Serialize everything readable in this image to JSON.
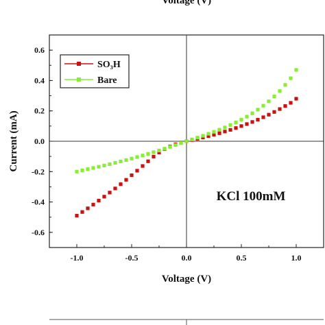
{
  "top_cropped_label": "Voltage (V)",
  "chart_data": {
    "type": "line",
    "xlabel": "Voltage (V)",
    "ylabel": "Current (mA)",
    "xlim": [
      -1.25,
      1.25
    ],
    "ylim": [
      -0.7,
      0.7
    ],
    "x_ticks": [
      -1.0,
      -0.5,
      0.0,
      0.5,
      1.0
    ],
    "x_tick_labels": [
      "-1.0",
      "-0.5",
      "0.0",
      "0.5",
      "1.0"
    ],
    "y_ticks": [
      -0.6,
      -0.4,
      -0.2,
      0.0,
      0.2,
      0.4,
      0.6
    ],
    "y_tick_labels": [
      "-0.6",
      "-0.4",
      "-0.2",
      "0.0",
      "0.2",
      "0.4",
      "0.6"
    ],
    "annotation": "KCl 100mM",
    "legend_position": "top-left",
    "x": [
      -1.0,
      -0.95,
      -0.9,
      -0.85,
      -0.8,
      -0.75,
      -0.7,
      -0.65,
      -0.6,
      -0.55,
      -0.5,
      -0.45,
      -0.4,
      -0.35,
      -0.3,
      -0.25,
      -0.2,
      -0.15,
      -0.1,
      -0.05,
      0.0,
      0.05,
      0.1,
      0.15,
      0.2,
      0.25,
      0.3,
      0.35,
      0.4,
      0.45,
      0.5,
      0.55,
      0.6,
      0.65,
      0.7,
      0.75,
      0.8,
      0.85,
      0.9,
      0.95,
      1.0
    ],
    "series": [
      {
        "name": "SO3H",
        "color": "#cc1111",
        "marker": "square",
        "values": [
          -0.49,
          -0.466,
          -0.442,
          -0.417,
          -0.391,
          -0.365,
          -0.338,
          -0.311,
          -0.283,
          -0.254,
          -0.224,
          -0.194,
          -0.163,
          -0.132,
          -0.101,
          -0.074,
          -0.052,
          -0.034,
          -0.02,
          -0.009,
          0.0,
          0.008,
          0.016,
          0.025,
          0.034,
          0.043,
          0.053,
          0.064,
          0.075,
          0.087,
          0.1,
          0.113,
          0.127,
          0.142,
          0.158,
          0.175,
          0.193,
          0.212,
          0.232,
          0.253,
          0.28
        ]
      },
      {
        "name": "Bare",
        "color": "#88ee33",
        "marker": "square",
        "values": [
          -0.2,
          -0.192,
          -0.184,
          -0.176,
          -0.168,
          -0.16,
          -0.151,
          -0.142,
          -0.133,
          -0.124,
          -0.114,
          -0.104,
          -0.094,
          -0.083,
          -0.072,
          -0.061,
          -0.049,
          -0.037,
          -0.025,
          -0.012,
          0.0,
          0.012,
          0.024,
          0.036,
          0.049,
          0.062,
          0.076,
          0.091,
          0.107,
          0.124,
          0.142,
          0.162,
          0.184,
          0.208,
          0.234,
          0.263,
          0.295,
          0.331,
          0.371,
          0.415,
          0.47
        ]
      }
    ]
  }
}
